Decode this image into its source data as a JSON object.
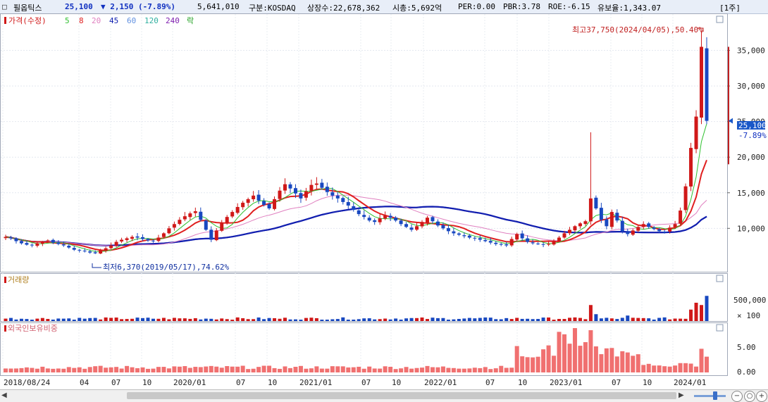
{
  "header": {
    "checkbox": "□",
    "stock_name": "필옵틱스",
    "price": "25,100",
    "change": "▼ 2,150 (-7.89%)",
    "volume": "5,641,010",
    "market": "구분:KOSDAQ",
    "shares": "상장수:22,678,362",
    "market_cap": "시총:5,692억",
    "per": "PER:0.00",
    "pbr": "PBR:3.78",
    "roe": "ROE:-6.15",
    "reserve": "유보율:1,343.07",
    "period": "[1주]"
  },
  "price_panel": {
    "legend": [
      {
        "label": "가격(수정)",
        "color": "#d01818"
      },
      {
        "label": "5",
        "color": "#30c030"
      },
      {
        "label": "8",
        "color": "#e02020"
      },
      {
        "label": "20",
        "color": "#e080c0"
      },
      {
        "label": "45",
        "color": "#1020b0"
      },
      {
        "label": "60",
        "color": "#6090e0"
      },
      {
        "label": "120",
        "color": "#30b0a0"
      },
      {
        "label": "240",
        "color": "#8020b0"
      },
      {
        "label": "락",
        "color": "#20a020"
      }
    ],
    "high_annotation": "최고37,750(2024/04/05),50.40%",
    "low_annotation": "최저6,370(2019/05/17),74.62%",
    "current_price_tag": "25,100",
    "current_change_tag": "-7.89%"
  },
  "volume_panel": {
    "title": "거래량",
    "unit": "× 100",
    "y_ticks": [
      "500,000"
    ]
  },
  "foreign_panel": {
    "title": "외국인보유비중",
    "y_ticks": [
      "5.00",
      "0.00"
    ]
  },
  "x_axis": {
    "labels": [
      "2018/08/24",
      "04",
      "07",
      "10",
      "2020/01",
      "07",
      "10",
      "2021/01",
      "07",
      "10",
      "2022/01",
      "07",
      "10",
      "2023/01",
      "07",
      "10",
      "2024/01"
    ]
  },
  "chart_data": {
    "type": "candlestick",
    "frequency": "weekly",
    "price_axis": {
      "range": [
        4000,
        40000
      ],
      "ticks": [
        10000,
        15000,
        20000,
        25000,
        30000,
        35000
      ],
      "tick_labels": [
        "10,000",
        "15,000",
        "20,000",
        "25,000",
        "30,000",
        "35,000"
      ]
    },
    "high": {
      "value": 37750,
      "date": "2024/04/05"
    },
    "low": {
      "value": 6370,
      "date": "2019/05/17"
    },
    "last_close": 25100,
    "close_series": [
      8800,
      8600,
      8200,
      7900,
      7700,
      7600,
      7900,
      8100,
      8300,
      8000,
      7800,
      7600,
      7300,
      7000,
      6900,
      6800,
      6600,
      6500,
      6900,
      7200,
      7600,
      8100,
      8400,
      8600,
      8800,
      8700,
      8500,
      8300,
      8200,
      8700,
      9300,
      10000,
      10600,
      11200,
      11700,
      12100,
      12400,
      11200,
      9800,
      8400,
      9700,
      10800,
      11600,
      12300,
      13000,
      13600,
      14100,
      14600,
      13900,
      13300,
      12800,
      14100,
      15300,
      16200,
      15600,
      14900,
      14200,
      15200,
      16100,
      16300,
      15700,
      15100,
      14600,
      14200,
      13700,
      13200,
      12600,
      12000,
      11600,
      11100,
      10900,
      11400,
      11800,
      11500,
      11100,
      10600,
      10200,
      9800,
      10300,
      10900,
      11500,
      11000,
      10400,
      10000,
      9600,
      9300,
      9100,
      8900,
      8700,
      8600,
      8400,
      8200,
      8000,
      7800,
      7700,
      7600,
      8500,
      9200,
      8600,
      8100,
      7900,
      7800,
      7700,
      7800,
      8200,
      8700,
      9300,
      9800,
      10300,
      10700,
      11000,
      14200,
      12800,
      11200,
      10300,
      12300,
      11100,
      9600,
      9200,
      9700,
      10200,
      10600,
      10200,
      9900,
      9600,
      9500,
      10100,
      10600,
      12500,
      15900,
      21300,
      25700,
      35500,
      25100
    ],
    "ma_periods": [
      5,
      8,
      20,
      45,
      60,
      120,
      240
    ]
  }
}
